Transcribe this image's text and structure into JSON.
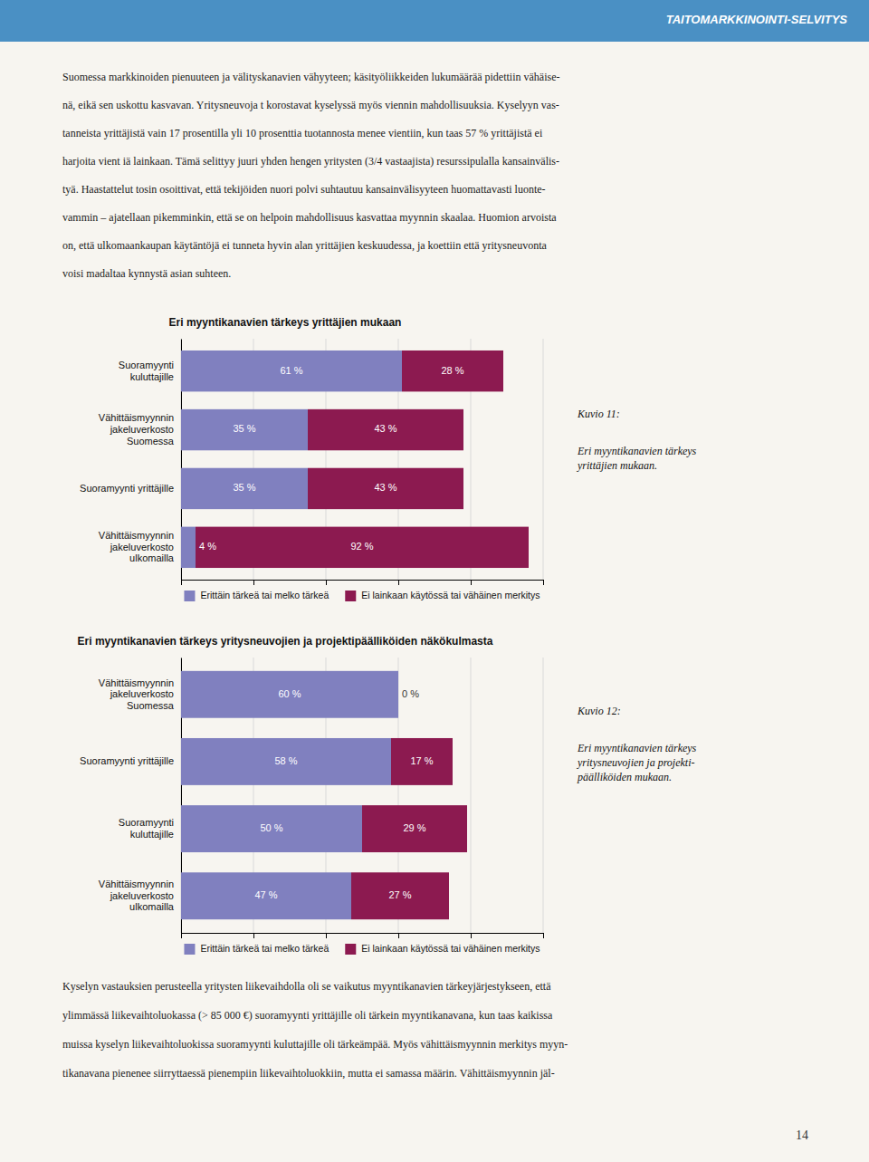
{
  "page_bg": "#f7f5f0",
  "header_bg": "#4a90c4",
  "header_text": "#ffffff",
  "header_title": "TAITOMARKKINOINTI-SELVITYS",
  "body_text": [
    "Suomessa markkinoiden pienuuteen ja välityskanavien vähyyteen; käsityöliikkeiden lukumäärää pidettiin vähäise-",
    "nä, eikä sen uskottu kasvavan. Yritysneuvoja t korostavat kyselyssä myös viennin mahdollisuuksia. Kyselyyn vas-",
    "tanneista yrittäjistä vain 17 prosentilla yli 10 prosenttia tuotannosta menee vientiin, kun taas 57 % yrittäjistä ei",
    "harjoita vient iä lainkaan. Tämä selittyy juuri yhden hengen yritysten (3/4 vastaajista) resurssipulalla kansainvälis-",
    "tyä. Haastattelut tosin osoittivat, että tekijöiden nuori polvi suhtautuu kansainvälisyyteen huomattavasti luonte-",
    "vammin – ajatellaan pikemminkin, että se on helpoin mahdollisuus kasvattaa myynnin skaalaa. Huomion arvoista",
    "on, että ulkomaankaupan käytäntöjä ei tunneta hyvin alan yrittäjien keskuudessa, ja koettiin että yritysneuvonta",
    "voisi madaltaa kynnystä asian suhteen."
  ],
  "chart_data": [
    {
      "type": "bar",
      "orientation": "horizontal",
      "stacked": true,
      "title": "Eri myyntikanavien tärkeys yrittäjien mukaan",
      "categories": [
        "Suoramyynti\nkuluttajille",
        "Vähittäismyynnin\njakeluverkosto\nSuomessa",
        "Suoramyynti yrittäjille",
        "Vähittäismyynnin\njakeluverkosto\nulkomailla"
      ],
      "series": [
        {
          "name": "Erittäin tärkeä tai melko tärkeä",
          "color": "#8080bf",
          "values": [
            61,
            35,
            35,
            4
          ],
          "value_labels": [
            "61 %",
            "35 %",
            "35 %",
            "4 %"
          ]
        },
        {
          "name": "Ei lainkaan käytössä tai vähäinen merkitys",
          "color": "#8c1a50",
          "values": [
            28,
            43,
            43,
            92
          ],
          "value_labels": [
            "28 %",
            "43 %",
            "43 %",
            "92 %"
          ]
        }
      ],
      "xlim": [
        0,
        100
      ],
      "xticks": [
        0,
        20,
        40,
        60,
        80,
        100
      ],
      "grid": true,
      "data_labels": true,
      "tick_labels": "y",
      "legend": "bottom"
    },
    {
      "type": "bar",
      "orientation": "horizontal",
      "stacked": true,
      "title": "Eri myyntikanavien tärkeys yritysneuvojien ja projektipäälliköiden näkökulmasta",
      "categories": [
        "Vähittäismyynnin\njakeluverkosto\nSuomessa",
        "Suoramyynti yrittäjille",
        "Suoramyynti\nkuluttajille",
        "Vähittäismyynnin\njakeluverkosto\nulkomailla"
      ],
      "series": [
        {
          "name": "Erittäin tärkeä tai melko tärkeä",
          "color": "#8080bf",
          "values": [
            60,
            58,
            50,
            47
          ],
          "value_labels": [
            "60 %",
            "58 %",
            "50 %",
            "47 %"
          ]
        },
        {
          "name": "Ei lainkaan käytössä tai vähäinen merkitys",
          "color": "#8c1a50",
          "values": [
            0,
            17,
            29,
            27
          ],
          "value_labels": [
            "0 %",
            "17 %",
            "29 %",
            "27 %"
          ]
        }
      ],
      "xlim": [
        0,
        100
      ],
      "xticks": [
        0,
        20,
        40,
        60,
        80,
        100
      ],
      "grid": true,
      "data_labels": true,
      "tick_labels": "y",
      "legend": "bottom"
    }
  ],
  "captions": [
    {
      "title": "Kuvio 11:",
      "body": "Eri myyntikanavien tärkeys\nyrittäjien mukaan."
    },
    {
      "title": "Kuvio 12:",
      "body": "Eri myyntikanavien tärkeys\nyritysneuvojien ja projekti-\npäälliköiden mukaan."
    }
  ],
  "footer_text": [
    "Kyselyn vastauksien perusteella yritysten liikevaihdolla oli se vaikutus myyntikanavien tärkeyjärjestykseen, että",
    "ylimmässä liikevaihtoluokassa (> 85 000 €) suoramyynti yrittäjille oli tärkein myyntikanavana, kun taas kaikissa",
    "muissa kyselyn liikevaihtoluokissa suoramyynti kuluttajille oli tärkeämpää. Myös vähittäismyynnin merkitys myyn-",
    "tikanavana pienenee siirryttaessä pienempiin liikevaihtoluokkiin, mutta ei samassa määrin. Vähittäismyynnin jäl-"
  ],
  "page_number": "14"
}
